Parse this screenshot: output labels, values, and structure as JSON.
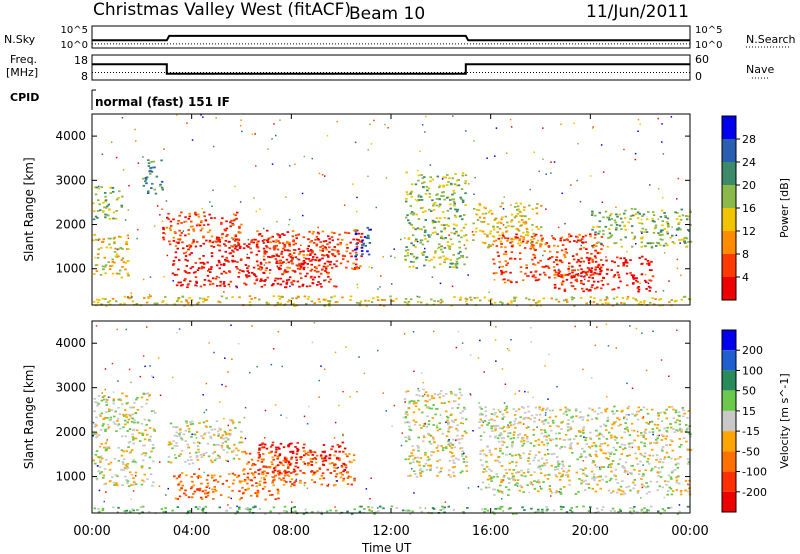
{
  "header": {
    "station": "Christmas Valley West (fitACF)",
    "beam": "Beam 10",
    "date": "11/Jun/2011"
  },
  "left_labels": {
    "nsky": "N.Sky",
    "freq_line1": "Freq.",
    "freq_line2": "[MHz]",
    "cpid": "CPID"
  },
  "right_labels": {
    "nsearch": "N.Search",
    "nave": "Nave"
  },
  "mode_text": "normal (fast) 151 IF",
  "axis": {
    "xlabel": "Time UT",
    "ylabel": "Slant Range [km]",
    "xticks": [
      "00:00",
      "04:00",
      "08:00",
      "12:00",
      "16:00",
      "20:00",
      "00:00"
    ],
    "yticks": [
      "1000",
      "2000",
      "3000",
      "4000"
    ]
  },
  "colors": {
    "power": [
      "#0000ee",
      "#2a5fb0",
      "#3c8a6a",
      "#8ab84a",
      "#f0c400",
      "#ff8c00",
      "#ff3a00",
      "#ee0000"
    ],
    "velocity": [
      "#0000ee",
      "#1f5fd0",
      "#2a8a5a",
      "#6ac84a",
      "#c8c8c8",
      "#ffa500",
      "#ff7000",
      "#ff3000",
      "#ee0000"
    ]
  },
  "chart_data": [
    {
      "type": "line",
      "title": "N.Sky / N.Search",
      "ylabel_left": "N.Sky",
      "ylabel_right": "N.Search",
      "yticks_left": [
        "10^5",
        "10^0"
      ],
      "yticks_right": [
        "10^5",
        "10^0"
      ],
      "x_hours": [
        0,
        3,
        3.1,
        15,
        15.1,
        24
      ],
      "nsky_level": [
        0.35,
        0.35,
        0.55,
        0.55,
        0.35,
        0.35
      ],
      "nsearch_level": [
        0.05,
        0.05,
        0.05,
        0.05,
        0.05,
        0.05
      ]
    },
    {
      "type": "line",
      "title": "Freq. / Nave",
      "ylabel_left": "Freq. [MHz]",
      "ylabel_right": "Nave",
      "yticks_left": [
        "18",
        "8"
      ],
      "yticks_right": [
        "60",
        "0"
      ],
      "x_hours": [
        0,
        3,
        3,
        15,
        15,
        24
      ],
      "freq_mhz": [
        14.3,
        14.3,
        10.5,
        10.5,
        14.3,
        14.3
      ],
      "nave": [
        18,
        18,
        18,
        18,
        18,
        18
      ]
    },
    {
      "type": "heatmap",
      "title": "Power",
      "colorbar_label": "Power [dB]",
      "colorbar_ticks": [
        "28",
        "24",
        "20",
        "16",
        "12",
        "8",
        "4"
      ],
      "xlabel": "Time UT",
      "ylabel": "Slant Range [km]",
      "xlim_hours": [
        0,
        24
      ],
      "ylim_km": [
        180,
        4500
      ],
      "regions": [
        {
          "t0": 0.0,
          "t1": 1.5,
          "r0": 800,
          "r1": 1800,
          "level": 4
        },
        {
          "t0": 0.0,
          "t1": 1.2,
          "r0": 2100,
          "r1": 2900,
          "level": 3
        },
        {
          "t0": 2.0,
          "t1": 2.8,
          "r0": 2700,
          "r1": 3500,
          "level": 2
        },
        {
          "t0": 2.8,
          "t1": 6.0,
          "r0": 1500,
          "r1": 2300,
          "level": 6
        },
        {
          "t0": 3.2,
          "t1": 9.8,
          "r0": 600,
          "r1": 1700,
          "level": 7
        },
        {
          "t0": 6.5,
          "t1": 10.8,
          "r0": 900,
          "r1": 1900,
          "level": 6
        },
        {
          "t0": 10.5,
          "t1": 11.2,
          "r0": 1200,
          "r1": 2000,
          "level": 1
        },
        {
          "t0": 12.5,
          "t1": 15.0,
          "r0": 1000,
          "r1": 3200,
          "level": 3
        },
        {
          "t0": 15.2,
          "t1": 18.0,
          "r0": 1500,
          "r1": 2500,
          "level": 4
        },
        {
          "t0": 16.0,
          "t1": 20.5,
          "r0": 700,
          "r1": 1800,
          "level": 6
        },
        {
          "t0": 18.5,
          "t1": 22.5,
          "r0": 500,
          "r1": 1300,
          "level": 7
        },
        {
          "t0": 20.0,
          "t1": 24.0,
          "r0": 1500,
          "r1": 2400,
          "level": 3
        },
        {
          "t0": 0.0,
          "t1": 24.0,
          "r0": 180,
          "r1": 400,
          "level": 4
        }
      ]
    },
    {
      "type": "heatmap",
      "title": "Velocity",
      "colorbar_label": "Velocity [m s^-1]",
      "colorbar_ticks": [
        "200",
        "100",
        "50",
        "15",
        "-15",
        "-50",
        "-100",
        "-200"
      ],
      "xlabel": "Time UT",
      "ylabel": "Slant Range [km]",
      "xlim_hours": [
        0,
        24
      ],
      "ylim_km": [
        180,
        4500
      ],
      "regions": [
        {
          "t0": 0.0,
          "t1": 2.5,
          "r0": 800,
          "r1": 2900,
          "level": 4
        },
        {
          "t0": 3.0,
          "t1": 6.0,
          "r0": 1300,
          "r1": 2300,
          "level": 4
        },
        {
          "t0": 3.2,
          "t1": 7.5,
          "r0": 500,
          "r1": 1100,
          "level": 6
        },
        {
          "t0": 6.0,
          "t1": 10.5,
          "r0": 800,
          "r1": 1600,
          "level": 6
        },
        {
          "t0": 6.5,
          "t1": 10.2,
          "r0": 1100,
          "r1": 1800,
          "level": 8
        },
        {
          "t0": 12.5,
          "t1": 15.0,
          "r0": 1000,
          "r1": 3000,
          "level": 4
        },
        {
          "t0": 15.5,
          "t1": 24.0,
          "r0": 600,
          "r1": 2600,
          "level": 4
        },
        {
          "t0": 0.0,
          "t1": 24.0,
          "r0": 180,
          "r1": 350,
          "level": 3
        }
      ]
    }
  ]
}
